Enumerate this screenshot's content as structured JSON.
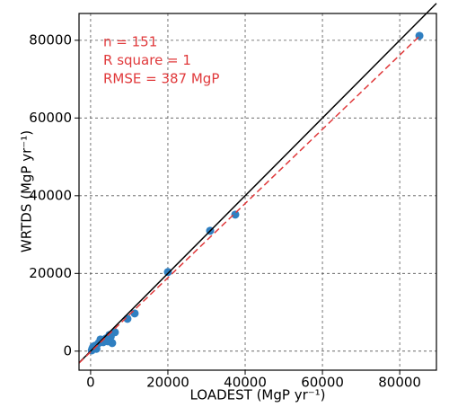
{
  "chart_data": {
    "type": "scatter",
    "xlabel": "LOADEST (MgP yr⁻¹)",
    "ylabel": "WRTDS (MgP yr⁻¹)",
    "annotations": [
      "n = 151",
      "R square = 1",
      "RMSE = 387 MgP"
    ],
    "x": [
      85100,
      37440,
      30930,
      20000,
      11400,
      9530,
      6280,
      5580,
      4880,
      3950,
      3260,
      2090,
      1160,
      470,
      700,
      2560,
      4420,
      5200,
      1500,
      300
    ],
    "y": [
      81150,
      35140,
      30980,
      20350,
      9700,
      8320,
      4860,
      2080,
      4160,
      3240,
      2310,
      2080,
      1390,
      690,
      1160,
      3000,
      2540,
      3700,
      600,
      200
    ],
    "color": "#2f7fc1",
    "identity_line": {
      "x": [
        -3000,
        89500
      ],
      "y": [
        -3000,
        89500
      ],
      "color": "#000000"
    },
    "fit_line": {
      "x": [
        -3000,
        85100
      ],
      "y": [
        -3065,
        81060
      ],
      "color": "#e0393b"
    },
    "note_color": "#e0393b",
    "xlim": [
      -3000,
      89500
    ],
    "ylim": [
      -4900,
      86900
    ],
    "xticks": [
      0,
      20000,
      40000,
      60000,
      80000
    ],
    "yticks": [
      0,
      20000,
      40000,
      60000,
      80000
    ],
    "grid": true
  }
}
